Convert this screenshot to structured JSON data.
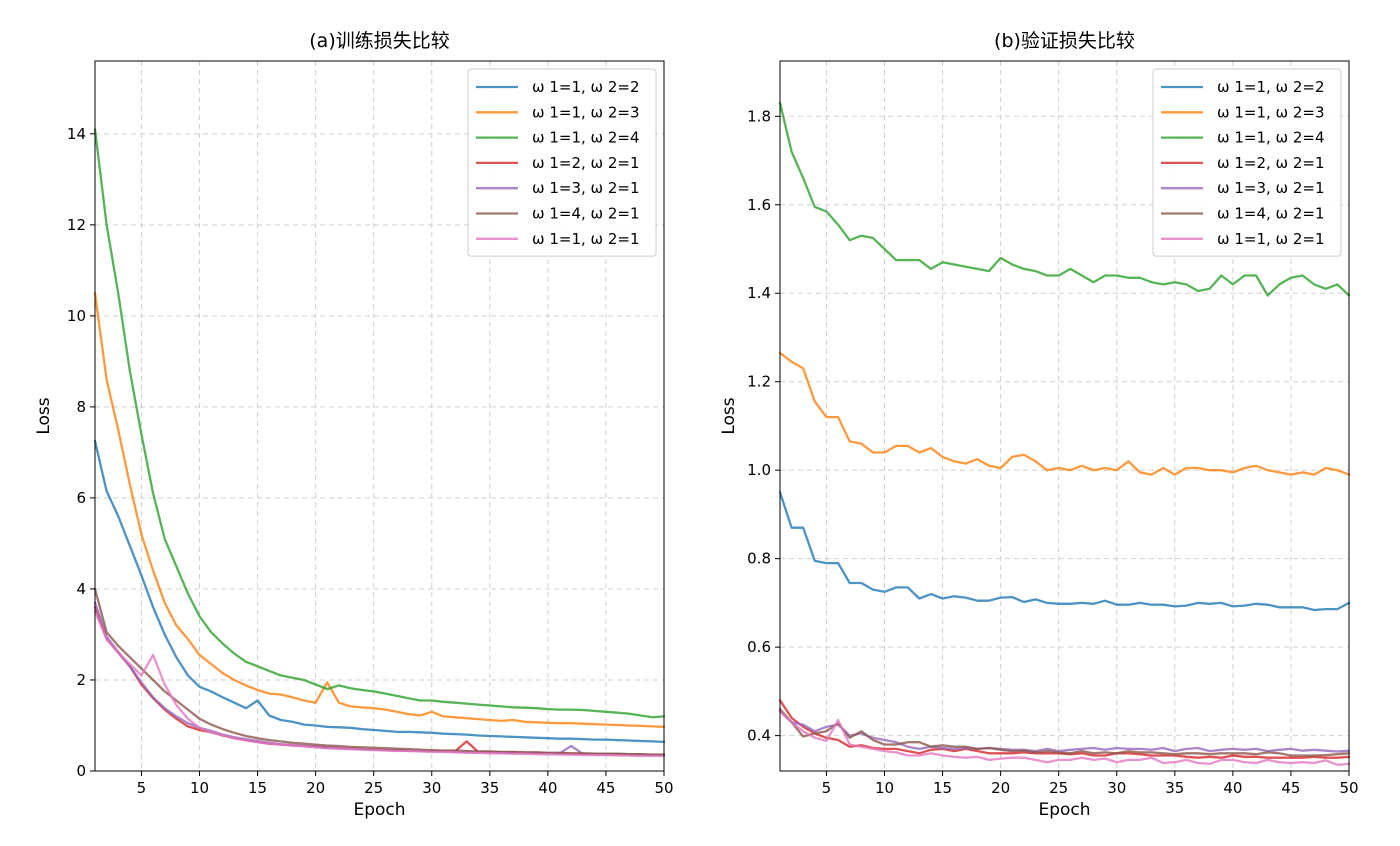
{
  "chart_data": [
    {
      "type": "line",
      "title": "(a)训练损失比较",
      "xlabel": "Epoch",
      "ylabel": "Loss",
      "xlim": [
        1,
        50
      ],
      "ylim": [
        0,
        15.6
      ],
      "xticks": [
        5,
        10,
        15,
        20,
        25,
        30,
        35,
        40,
        45,
        50
      ],
      "yticks": [
        0,
        2,
        4,
        6,
        8,
        10,
        12,
        14
      ],
      "ytick_labels": [
        "0",
        "2",
        "4",
        "6",
        "8",
        "10",
        "12",
        "14"
      ],
      "grid": true,
      "legend_position": "upper-right",
      "x": [
        1,
        2,
        3,
        4,
        5,
        6,
        7,
        8,
        9,
        10,
        11,
        12,
        13,
        14,
        15,
        16,
        17,
        18,
        19,
        20,
        21,
        22,
        23,
        24,
        25,
        26,
        27,
        28,
        29,
        30,
        31,
        32,
        33,
        34,
        35,
        36,
        37,
        38,
        39,
        40,
        41,
        42,
        43,
        44,
        45,
        46,
        47,
        48,
        49,
        50
      ],
      "series": [
        {
          "name": "ω1=1, ω2=2",
          "color": "#1f77b4",
          "values": [
            7.25,
            6.15,
            5.6,
            4.95,
            4.3,
            3.6,
            3.0,
            2.5,
            2.1,
            1.85,
            1.75,
            1.62,
            1.5,
            1.38,
            1.55,
            1.22,
            1.12,
            1.08,
            1.02,
            1.0,
            0.97,
            0.96,
            0.95,
            0.92,
            0.9,
            0.88,
            0.86,
            0.86,
            0.85,
            0.84,
            0.82,
            0.81,
            0.8,
            0.78,
            0.77,
            0.76,
            0.75,
            0.74,
            0.73,
            0.72,
            0.71,
            0.71,
            0.7,
            0.69,
            0.69,
            0.68,
            0.67,
            0.66,
            0.65,
            0.64
          ]
        },
        {
          "name": "ω1=1, ω2=3",
          "color": "#ff7f0e",
          "values": [
            10.5,
            8.6,
            7.5,
            6.3,
            5.2,
            4.4,
            3.7,
            3.2,
            2.9,
            2.55,
            2.35,
            2.15,
            2.0,
            1.88,
            1.78,
            1.7,
            1.68,
            1.62,
            1.55,
            1.5,
            1.95,
            1.5,
            1.42,
            1.4,
            1.38,
            1.35,
            1.3,
            1.25,
            1.22,
            1.3,
            1.2,
            1.18,
            1.16,
            1.14,
            1.12,
            1.1,
            1.12,
            1.08,
            1.07,
            1.06,
            1.05,
            1.05,
            1.04,
            1.03,
            1.02,
            1.01,
            1.0,
            0.99,
            0.98,
            0.97
          ]
        },
        {
          "name": "ω1=1, ω2=4",
          "color": "#2ca02c",
          "values": [
            14.1,
            12.0,
            10.5,
            8.8,
            7.4,
            6.1,
            5.1,
            4.5,
            3.9,
            3.4,
            3.05,
            2.8,
            2.58,
            2.4,
            2.3,
            2.2,
            2.1,
            2.05,
            2.0,
            1.9,
            1.8,
            1.88,
            1.82,
            1.78,
            1.75,
            1.7,
            1.65,
            1.6,
            1.55,
            1.55,
            1.52,
            1.5,
            1.48,
            1.46,
            1.44,
            1.42,
            1.4,
            1.39,
            1.38,
            1.36,
            1.35,
            1.35,
            1.34,
            1.32,
            1.3,
            1.28,
            1.26,
            1.22,
            1.18,
            1.2
          ]
        },
        {
          "name": "ω1=2, ω2=1",
          "color": "#d62728",
          "values": [
            3.6,
            2.9,
            2.6,
            2.3,
            1.9,
            1.6,
            1.35,
            1.15,
            0.98,
            0.9,
            0.85,
            0.78,
            0.72,
            0.68,
            0.64,
            0.6,
            0.58,
            0.56,
            0.55,
            0.54,
            0.52,
            0.5,
            0.49,
            0.48,
            0.47,
            0.46,
            0.46,
            0.45,
            0.44,
            0.44,
            0.43,
            0.43,
            0.65,
            0.42,
            0.42,
            0.41,
            0.41,
            0.4,
            0.4,
            0.39,
            0.39,
            0.38,
            0.38,
            0.37,
            0.37,
            0.37,
            0.36,
            0.36,
            0.36,
            0.35
          ]
        },
        {
          "name": "ω1=3, ω2=1",
          "color": "#9467bd",
          "values": [
            3.7,
            2.95,
            2.62,
            2.3,
            1.95,
            1.62,
            1.38,
            1.2,
            1.05,
            0.95,
            0.88,
            0.8,
            0.74,
            0.7,
            0.66,
            0.62,
            0.59,
            0.57,
            0.55,
            0.53,
            0.51,
            0.5,
            0.49,
            0.48,
            0.47,
            0.46,
            0.45,
            0.44,
            0.44,
            0.43,
            0.43,
            0.42,
            0.42,
            0.41,
            0.41,
            0.4,
            0.4,
            0.4,
            0.39,
            0.39,
            0.39,
            0.55,
            0.38,
            0.38,
            0.37,
            0.37,
            0.37,
            0.36,
            0.36,
            0.36
          ]
        },
        {
          "name": "ω1=4, ω2=1",
          "color": "#8c564b",
          "values": [
            4.0,
            3.05,
            2.75,
            2.5,
            2.25,
            2.0,
            1.75,
            1.55,
            1.35,
            1.15,
            1.02,
            0.92,
            0.84,
            0.77,
            0.72,
            0.68,
            0.65,
            0.62,
            0.6,
            0.58,
            0.56,
            0.55,
            0.53,
            0.52,
            0.51,
            0.5,
            0.49,
            0.48,
            0.47,
            0.46,
            0.45,
            0.45,
            0.44,
            0.43,
            0.43,
            0.42,
            0.42,
            0.41,
            0.41,
            0.4,
            0.4,
            0.39,
            0.39,
            0.38,
            0.38,
            0.38,
            0.37,
            0.37,
            0.36,
            0.36
          ]
        },
        {
          "name": "ω1=1, ω2=1",
          "color": "#e377c2",
          "values": [
            3.5,
            2.9,
            2.6,
            2.35,
            2.1,
            2.55,
            1.9,
            1.45,
            1.15,
            0.95,
            0.85,
            0.78,
            0.72,
            0.67,
            0.63,
            0.6,
            0.58,
            0.56,
            0.54,
            0.52,
            0.5,
            0.49,
            0.48,
            0.47,
            0.46,
            0.45,
            0.44,
            0.44,
            0.43,
            0.42,
            0.42,
            0.41,
            0.4,
            0.4,
            0.39,
            0.39,
            0.38,
            0.38,
            0.37,
            0.37,
            0.36,
            0.36,
            0.35,
            0.35,
            0.35,
            0.34,
            0.34,
            0.33,
            0.33,
            0.33
          ]
        }
      ]
    },
    {
      "type": "line",
      "title": "(b)验证损失比较",
      "xlabel": "Epoch",
      "ylabel": "Loss",
      "xlim": [
        1,
        50
      ],
      "ylim": [
        0.32,
        1.925
      ],
      "xticks": [
        5,
        10,
        15,
        20,
        25,
        30,
        35,
        40,
        45,
        50
      ],
      "yticks": [
        0.4,
        0.6,
        0.8,
        1.0,
        1.2,
        1.4,
        1.6,
        1.8
      ],
      "ytick_labels": [
        "0.4",
        "0.6",
        "0.8",
        "1.0",
        "1.2",
        "1.4",
        "1.6",
        "1.8"
      ],
      "grid": true,
      "legend_position": "upper-right",
      "x": [
        1,
        2,
        3,
        4,
        5,
        6,
        7,
        8,
        9,
        10,
        11,
        12,
        13,
        14,
        15,
        16,
        17,
        18,
        19,
        20,
        21,
        22,
        23,
        24,
        25,
        26,
        27,
        28,
        29,
        30,
        31,
        32,
        33,
        34,
        35,
        36,
        37,
        38,
        39,
        40,
        41,
        42,
        43,
        44,
        45,
        46,
        47,
        48,
        49,
        50
      ],
      "series": [
        {
          "name": "ω1=1, ω2=2",
          "color": "#1f77b4",
          "values": [
            0.95,
            0.87,
            0.87,
            0.795,
            0.79,
            0.79,
            0.745,
            0.745,
            0.73,
            0.725,
            0.735,
            0.735,
            0.71,
            0.72,
            0.71,
            0.715,
            0.712,
            0.705,
            0.705,
            0.712,
            0.713,
            0.702,
            0.708,
            0.7,
            0.698,
            0.698,
            0.7,
            0.698,
            0.705,
            0.696,
            0.696,
            0.7,
            0.696,
            0.696,
            0.692,
            0.694,
            0.7,
            0.698,
            0.7,
            0.692,
            0.694,
            0.698,
            0.696,
            0.69,
            0.69,
            0.69,
            0.684,
            0.686,
            0.686,
            0.7
          ]
        },
        {
          "name": "ω1=1, ω2=3",
          "color": "#ff7f0e",
          "values": [
            1.265,
            1.245,
            1.23,
            1.155,
            1.12,
            1.12,
            1.065,
            1.06,
            1.04,
            1.04,
            1.055,
            1.055,
            1.04,
            1.05,
            1.03,
            1.02,
            1.015,
            1.025,
            1.01,
            1.005,
            1.03,
            1.035,
            1.02,
            1.0,
            1.005,
            1.0,
            1.01,
            1.0,
            1.005,
            1.0,
            1.02,
            0.995,
            0.99,
            1.005,
            0.99,
            1.005,
            1.005,
            1.0,
            1.0,
            0.995,
            1.005,
            1.01,
            1.0,
            0.995,
            0.99,
            0.995,
            0.99,
            1.005,
            1.0,
            0.99
          ]
        },
        {
          "name": "ω1=1, ω2=4",
          "color": "#2ca02c",
          "values": [
            1.83,
            1.72,
            1.66,
            1.595,
            1.585,
            1.555,
            1.52,
            1.53,
            1.525,
            1.5,
            1.475,
            1.475,
            1.475,
            1.455,
            1.47,
            1.465,
            1.46,
            1.455,
            1.45,
            1.48,
            1.465,
            1.455,
            1.45,
            1.44,
            1.44,
            1.455,
            1.44,
            1.425,
            1.44,
            1.44,
            1.435,
            1.435,
            1.425,
            1.42,
            1.425,
            1.42,
            1.405,
            1.41,
            1.44,
            1.42,
            1.44,
            1.44,
            1.395,
            1.42,
            1.435,
            1.44,
            1.42,
            1.41,
            1.42,
            1.395
          ]
        },
        {
          "name": "ω1=2, ω2=1",
          "color": "#d62728",
          "values": [
            0.48,
            0.44,
            0.42,
            0.405,
            0.395,
            0.39,
            0.375,
            0.378,
            0.372,
            0.37,
            0.37,
            0.365,
            0.36,
            0.368,
            0.37,
            0.365,
            0.37,
            0.365,
            0.36,
            0.36,
            0.36,
            0.362,
            0.36,
            0.36,
            0.36,
            0.358,
            0.36,
            0.355,
            0.355,
            0.36,
            0.36,
            0.358,
            0.355,
            0.355,
            0.355,
            0.352,
            0.35,
            0.352,
            0.35,
            0.355,
            0.352,
            0.352,
            0.35,
            0.35,
            0.35,
            0.35,
            0.352,
            0.35,
            0.35,
            0.352
          ]
        },
        {
          "name": "ω1=3, ω2=1",
          "color": "#9467bd",
          "values": [
            0.455,
            0.43,
            0.425,
            0.41,
            0.42,
            0.425,
            0.4,
            0.405,
            0.395,
            0.39,
            0.385,
            0.375,
            0.37,
            0.375,
            0.372,
            0.37,
            0.372,
            0.37,
            0.372,
            0.37,
            0.368,
            0.368,
            0.365,
            0.37,
            0.365,
            0.368,
            0.37,
            0.372,
            0.368,
            0.372,
            0.37,
            0.37,
            0.368,
            0.372,
            0.365,
            0.37,
            0.372,
            0.365,
            0.368,
            0.37,
            0.368,
            0.37,
            0.365,
            0.368,
            0.37,
            0.366,
            0.368,
            0.366,
            0.364,
            0.366
          ]
        },
        {
          "name": "ω1=4, ω2=1",
          "color": "#8c564b",
          "values": [
            0.46,
            0.43,
            0.398,
            0.405,
            0.41,
            0.428,
            0.395,
            0.41,
            0.39,
            0.38,
            0.38,
            0.385,
            0.385,
            0.375,
            0.378,
            0.375,
            0.375,
            0.37,
            0.372,
            0.368,
            0.365,
            0.366,
            0.362,
            0.365,
            0.362,
            0.36,
            0.365,
            0.36,
            0.362,
            0.36,
            0.365,
            0.362,
            0.362,
            0.36,
            0.358,
            0.36,
            0.36,
            0.358,
            0.36,
            0.36,
            0.36,
            0.358,
            0.362,
            0.36,
            0.355,
            0.355,
            0.355,
            0.356,
            0.358,
            0.36
          ]
        },
        {
          "name": "ω1=1, ω2=1",
          "color": "#e377c2",
          "values": [
            0.455,
            0.43,
            0.41,
            0.395,
            0.388,
            0.435,
            0.38,
            0.375,
            0.37,
            0.365,
            0.362,
            0.355,
            0.355,
            0.36,
            0.355,
            0.352,
            0.35,
            0.352,
            0.345,
            0.348,
            0.35,
            0.35,
            0.345,
            0.34,
            0.345,
            0.345,
            0.35,
            0.345,
            0.348,
            0.34,
            0.345,
            0.345,
            0.35,
            0.338,
            0.34,
            0.345,
            0.338,
            0.336,
            0.345,
            0.345,
            0.34,
            0.338,
            0.345,
            0.34,
            0.338,
            0.34,
            0.338,
            0.344,
            0.334,
            0.336
          ]
        }
      ]
    }
  ]
}
